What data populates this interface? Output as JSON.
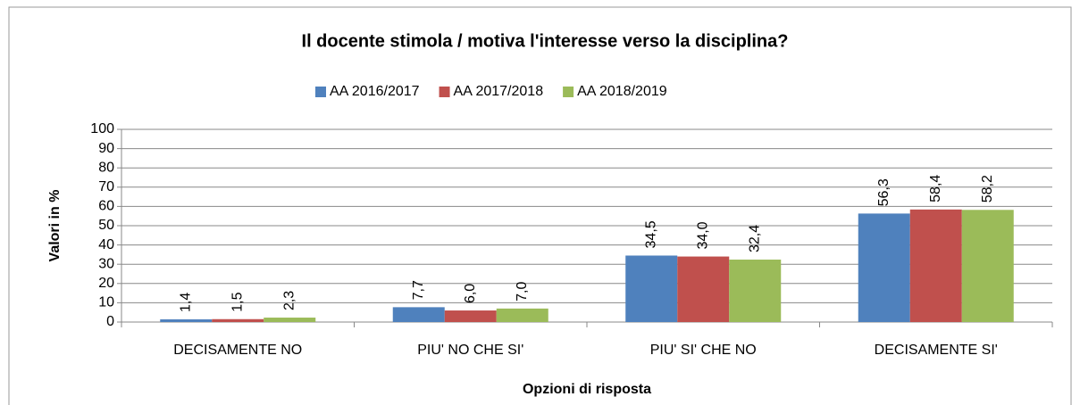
{
  "chart_data": {
    "type": "bar",
    "title": "Il docente stimola / motiva l'interesse verso la disciplina?",
    "x_label": "Opzioni di risposta",
    "y_label": "Valori in %",
    "categories": [
      "DECISAMENTE NO",
      "PIU' NO CHE SI'",
      "PIU' SI' CHE NO",
      "DECISAMENTE SI'"
    ],
    "series": [
      {
        "name": "AA 2016/2017",
        "color": "#4f81bd",
        "values": [
          1.4,
          7.7,
          34.5,
          56.3
        ],
        "value_labels": [
          "1,4",
          "7,7",
          "34,5",
          "56,3"
        ]
      },
      {
        "name": "AA 2017/2018",
        "color": "#c0504d",
        "values": [
          1.5,
          6.0,
          34.0,
          58.4
        ],
        "value_labels": [
          "1,5",
          "6,0",
          "34,0",
          "58,4"
        ]
      },
      {
        "name": "AA 2018/2019",
        "color": "#9bbb59",
        "values": [
          2.3,
          7.0,
          32.4,
          58.2
        ],
        "value_labels": [
          "2,3",
          "7,0",
          "32,4",
          "58,2"
        ]
      }
    ],
    "ylim": [
      0,
      100
    ],
    "yticks": [
      0,
      10,
      20,
      30,
      40,
      50,
      60,
      70,
      80,
      90,
      100
    ],
    "grid": true,
    "legend": "top"
  }
}
